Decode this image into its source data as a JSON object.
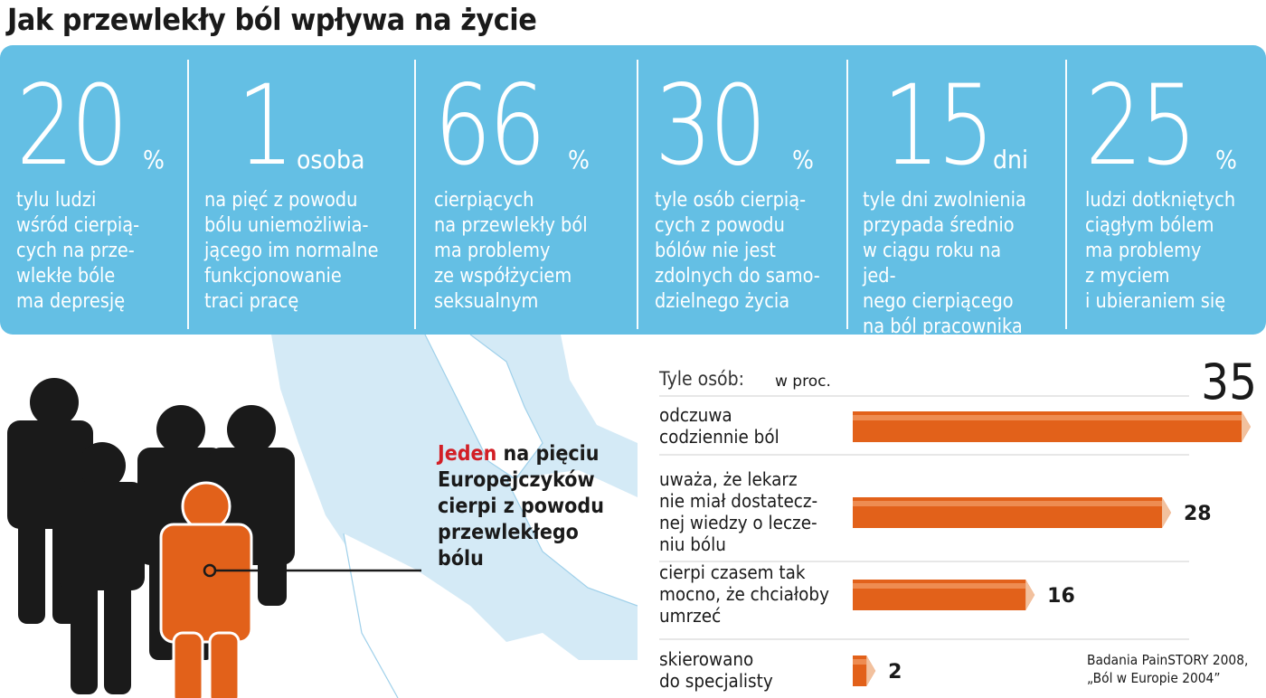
{
  "title": "Jak przewlekły ból wpływa na życie",
  "stats": [
    {
      "value": "20",
      "unit": "%",
      "description": "tylu ludzi\nwśród cierpią-\ncych na prze-\nwlekłe bóle\nma depresję"
    },
    {
      "value": "1",
      "unit": "osoba",
      "description": "na pięć z powodu\nbólu uniemożliwia-\njącego im normalne\nfunkcjonowanie\ntraci pracę"
    },
    {
      "value": "66",
      "unit": "%",
      "description": "cierpiących\nna przewlekły ból\nma problemy\nze współżyciem\nseksualnym"
    },
    {
      "value": "30",
      "unit": "%",
      "description": "tyle osób cierpią-\ncych z powodu\nbólów nie jest\nzdolnych do samo-\ndzielnego życia"
    },
    {
      "value": "15",
      "unit": "dni",
      "description": "tyle dni zwolnienia\nprzypada średnio\nw ciągu roku na jed-\nnego cierpiącego\nna ból pracownika"
    },
    {
      "value": "25",
      "unit": "%",
      "description": "ludzi dotkniętych\nciągłym bólem\nma problemy\nz myciem\ni ubieraniem się"
    }
  ],
  "headline": {
    "highlight": "Jeden",
    "rest": " na pięciu Europejczyków cierpi z powodu przewlekłego bólu"
  },
  "chart_data": {
    "type": "bar",
    "orientation": "horizontal",
    "title": "Tyle osób:",
    "unit_label": "w proc.",
    "categories": [
      "odczuwa\ncodziennie ból",
      "uważa, że lekarz\nnie miał dostatecz-\nnej wiedzy o lecze-\nniu bólu",
      "cierpi czasem tak\nmocno, że chciałoby\numrzeć",
      "skierowano\ndo specjalisty"
    ],
    "values": [
      35,
      28,
      16,
      2
    ],
    "xlim": [
      0,
      35
    ],
    "grid": false,
    "legend": "none"
  },
  "source": "Badania PainSTORY 2008,\n„Ból w Europie 2004”",
  "colors": {
    "band": "#64bfe4",
    "bar": "#e2611a",
    "bar_highlight": "#f6a877",
    "bar_end": "#f2c19e",
    "figure_dark": "#1a1a1a",
    "figure_highlight": "#e2611a",
    "map_sea": "#d4eaf6",
    "map_land": "#ffffff",
    "headline_red": "#d21f26"
  }
}
